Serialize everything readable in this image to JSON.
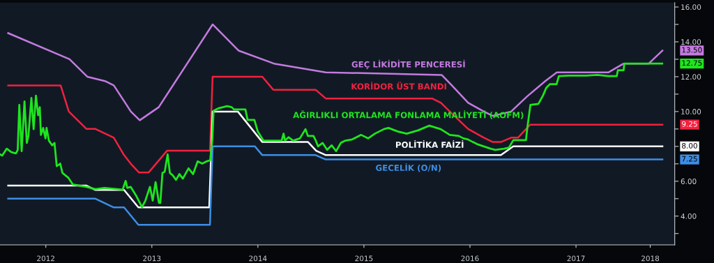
{
  "chart_data": {
    "type": "line",
    "series": [
      {
        "name": "GEÇ LİKİDİTE PENCERESİ",
        "color": "#c47ae0",
        "x": [
          2012.145,
          2012.724,
          2012.891,
          2013.058,
          2013.141,
          2013.238,
          2013.302,
          2013.386,
          2013.565,
          2014.073,
          2014.317,
          2014.652,
          2015.14,
          2016.233,
          2016.329,
          2016.483,
          2016.631,
          2016.715,
          2016.888,
          2017.036,
          2017.21,
          2017.319,
          2017.807,
          2017.949,
          2018.186,
          2018.315
        ],
        "values": [
          14.5,
          13.0,
          12.0,
          11.75,
          11.5,
          10.6,
          10.0,
          9.5,
          10.25,
          15.0,
          13.5,
          12.75,
          12.25,
          12.1,
          11.5,
          10.5,
          10.0,
          9.75,
          10.0,
          10.85,
          11.75,
          12.25,
          12.25,
          12.75,
          12.75,
          13.5
        ]
      },
      {
        "name": "KORİDOR ÜST BANDI",
        "color": "#f2213f",
        "x": [
          2012.145,
          2012.64,
          2012.717,
          2012.884,
          2012.968,
          2013.141,
          2013.238,
          2013.302,
          2013.379,
          2013.469,
          2013.643,
          2014.048,
          2014.073,
          2014.542,
          2014.645,
          2015.044,
          2015.14,
          2016.143,
          2016.226,
          2016.31,
          2016.483,
          2016.631,
          2016.715,
          2016.792,
          2016.888,
          2016.953,
          2017.068,
          2018.315
        ],
        "values": [
          11.5,
          11.5,
          10.0,
          9.0,
          9.0,
          8.5,
          7.5,
          7.0,
          6.5,
          6.5,
          7.75,
          7.75,
          12.0,
          12.0,
          11.25,
          11.25,
          10.75,
          10.75,
          10.5,
          10.0,
          9.0,
          8.5,
          8.25,
          8.25,
          8.5,
          8.5,
          9.25,
          9.25
        ]
      },
      {
        "name": "AĞIRLIKLI ORTALAMA FONLAMA MALİYETİ (AOFM)",
        "color": "#1fe51f",
        "x": [
          2012.068,
          2012.089,
          2012.132,
          2012.175,
          2012.218,
          2012.235,
          2012.25,
          2012.272,
          2012.299,
          2012.321,
          2012.336,
          2012.364,
          2012.385,
          2012.407,
          2012.428,
          2012.443,
          2012.454,
          2012.475,
          2012.497,
          2012.507,
          2012.529,
          2012.561,
          2012.582,
          2012.603,
          2012.636,
          2012.657,
          2012.711,
          2012.754,
          2012.882,
          2012.968,
          2013.053,
          2013.225,
          2013.253,
          2013.268,
          2013.3,
          2013.354,
          2013.407,
          2013.439,
          2013.482,
          2013.508,
          2013.535,
          2013.567,
          2013.58,
          2013.6,
          2013.621,
          2013.649,
          2013.67,
          2013.696,
          2013.728,
          2013.76,
          2013.792,
          2013.846,
          2013.889,
          2013.932,
          2013.975,
          2014.017,
          2014.05,
          2014.071,
          2014.082,
          2014.125,
          2014.21,
          2014.253,
          2014.274,
          2014.382,
          2014.403,
          2014.467,
          2014.499,
          2014.553,
          2014.724,
          2014.742,
          2014.756,
          2014.789,
          2014.832,
          2014.896,
          2014.949,
          2014.971,
          2015.024,
          2015.046,
          2015.067,
          2015.11,
          2015.153,
          2015.196,
          2015.238,
          2015.282,
          2015.325,
          2015.389,
          2015.474,
          2015.539,
          2015.603,
          2015.688,
          2015.731,
          2015.817,
          2015.903,
          2016.01,
          2016.117,
          2016.224,
          2016.31,
          2016.395,
          2016.438,
          2016.481,
          2016.524,
          2016.567,
          2016.631,
          2016.695,
          2016.738,
          2016.824,
          2016.867,
          2016.909,
          2017.028,
          2017.042,
          2017.07,
          2017.145,
          2017.188,
          2017.22,
          2017.253,
          2017.317,
          2017.338,
          2017.424,
          2017.595,
          2017.702,
          2017.809,
          2017.884,
          2017.895,
          2017.949,
          2017.955,
          2018.313
        ],
        "values": [
          7.54,
          7.47,
          7.87,
          7.67,
          7.6,
          7.8,
          10.38,
          7.73,
          10.58,
          8.2,
          8.6,
          10.78,
          8.99,
          10.91,
          9.79,
          10.25,
          8.66,
          9.06,
          8.46,
          9.06,
          8.33,
          8.06,
          8.2,
          6.87,
          7.01,
          6.48,
          6.21,
          5.82,
          5.68,
          5.55,
          5.62,
          5.52,
          6.02,
          5.62,
          5.68,
          5.15,
          4.52,
          4.89,
          5.68,
          4.89,
          5.95,
          4.76,
          4.76,
          6.48,
          6.54,
          7.54,
          6.48,
          6.35,
          6.08,
          6.41,
          6.15,
          6.74,
          6.41,
          7.14,
          7.01,
          7.14,
          7.21,
          8.46,
          10.05,
          10.18,
          10.31,
          10.25,
          10.12,
          10.12,
          9.52,
          9.52,
          8.86,
          8.33,
          8.33,
          8.73,
          8.33,
          8.53,
          8.33,
          8.46,
          8.99,
          8.6,
          8.6,
          8.33,
          8.0,
          8.2,
          7.8,
          8.06,
          7.73,
          8.2,
          8.33,
          8.4,
          8.66,
          8.46,
          8.73,
          8.99,
          9.06,
          8.86,
          8.73,
          8.92,
          9.19,
          8.99,
          8.66,
          8.6,
          8.46,
          8.4,
          8.26,
          8.13,
          8.0,
          7.87,
          7.8,
          7.87,
          7.93,
          8.36,
          8.36,
          9.12,
          10.38,
          10.44,
          10.91,
          11.37,
          11.57,
          11.57,
          12.03,
          12.06,
          12.06,
          12.1,
          12.03,
          12.03,
          12.37,
          12.37,
          12.75,
          12.75
        ]
      },
      {
        "name": "POLİTİKA FAİZİ",
        "color": "#ffffff",
        "x": [
          2012.145,
          2012.884,
          2012.968,
          2013.238,
          2013.373,
          2014.041,
          2014.073,
          2014.311,
          2014.542,
          2014.973,
          2015.05,
          2015.14,
          2016.792,
          2016.908,
          2018.315
        ],
        "values": [
          5.75,
          5.75,
          5.5,
          5.5,
          4.5,
          4.5,
          10.0,
          10.0,
          8.25,
          8.25,
          7.75,
          7.5,
          7.5,
          8.0,
          8.0
        ]
      },
      {
        "name": "GECELİK (O/N)",
        "color": "#3d8ee6",
        "x": [
          2012.145,
          2012.968,
          2013.141,
          2013.238,
          2013.373,
          2014.048,
          2014.073,
          2014.472,
          2014.542,
          2015.044,
          2015.14,
          2018.315
        ],
        "values": [
          5.0,
          5.0,
          4.5,
          4.5,
          3.5,
          3.5,
          8.0,
          8.0,
          7.5,
          7.5,
          7.25,
          7.25
        ]
      }
    ],
    "xlim": [
      2012.068,
      2018.431
    ],
    "xticks": [
      {
        "value": 2012.5,
        "label": "2012"
      },
      {
        "value": 2013.5,
        "label": "2013"
      },
      {
        "value": 2014.5,
        "label": "2014"
      },
      {
        "value": 2015.5,
        "label": "2015"
      },
      {
        "value": 2016.5,
        "label": "2016"
      },
      {
        "value": 2017.5,
        "label": "2017"
      },
      {
        "value": 2018.2,
        "label": "2018"
      }
    ],
    "ylim": [
      2.35,
      16.25
    ],
    "yticks": [
      {
        "value": 3,
        "label": null
      },
      {
        "value": 4,
        "label": "4.00"
      },
      {
        "value": 5,
        "label": null
      },
      {
        "value": 6,
        "label": "6.00"
      },
      {
        "value": 7,
        "label": null
      },
      {
        "value": 8,
        "label": null
      },
      {
        "value": 9,
        "label": null
      },
      {
        "value": 10,
        "label": "10.00"
      },
      {
        "value": 11,
        "label": null
      },
      {
        "value": 12,
        "label": "12.00"
      },
      {
        "value": 13,
        "label": null
      },
      {
        "value": 14,
        "label": "14.00"
      },
      {
        "value": 15,
        "label": null
      },
      {
        "value": 16,
        "label": "16.00"
      }
    ],
    "annotations": [
      "13.50",
      "9.25",
      "12.75",
      "8.00",
      "7.25"
    ]
  }
}
